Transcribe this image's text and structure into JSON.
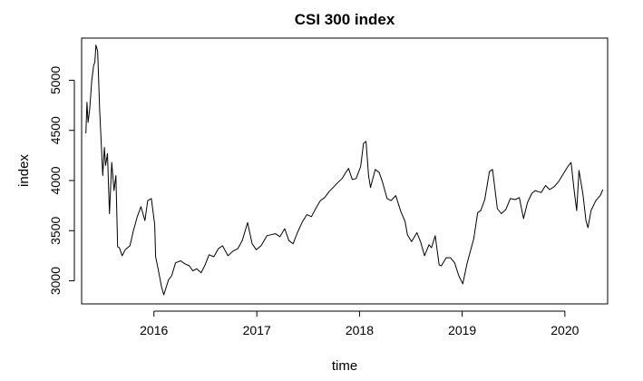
{
  "chart_data": {
    "type": "line",
    "title": "CSI 300 index",
    "xlabel": "time",
    "ylabel": "index",
    "x_ticks": [
      "2016",
      "2017",
      "2018",
      "2019",
      "2020"
    ],
    "y_ticks": [
      "3000",
      "3500",
      "4000",
      "4500",
      "5000"
    ],
    "xlim": [
      "2015-04-19",
      "2020-06-01"
    ],
    "ylim": [
      2770,
      5420
    ],
    "grid": false,
    "legend": "none",
    "line_color": "#000000",
    "series": [
      {
        "x": [
          "2015-05-04",
          "2015-05-08",
          "2015-05-12",
          "2015-05-18",
          "2015-05-25",
          "2015-06-01",
          "2015-06-05",
          "2015-06-09",
          "2015-06-15",
          "2015-06-22",
          "2015-06-29",
          "2015-07-03",
          "2015-07-09",
          "2015-07-13",
          "2015-07-20",
          "2015-07-27",
          "2015-08-04",
          "2015-08-12",
          "2015-08-19",
          "2015-08-25",
          "2015-08-31",
          "2015-09-10",
          "2015-09-21",
          "2015-10-08",
          "2015-10-20",
          "2015-11-03",
          "2015-11-16",
          "2015-11-30",
          "2015-12-10",
          "2015-12-23",
          "2016-01-04",
          "2016-01-07",
          "2016-01-15",
          "2016-01-28",
          "2016-02-05",
          "2016-02-22",
          "2016-03-04",
          "2016-03-18",
          "2016-04-05",
          "2016-04-20",
          "2016-05-06",
          "2016-05-18",
          "2016-06-01",
          "2016-06-17",
          "2016-07-01",
          "2016-07-15",
          "2016-08-01",
          "2016-08-17",
          "2016-09-01",
          "2016-09-20",
          "2016-10-10",
          "2016-10-25",
          "2016-11-10",
          "2016-11-29",
          "2016-12-15",
          "2016-12-30",
          "2017-01-16",
          "2017-02-06",
          "2017-02-21",
          "2017-03-08",
          "2017-03-24",
          "2017-04-10",
          "2017-04-25",
          "2017-05-10",
          "2017-05-25",
          "2017-06-12",
          "2017-06-28",
          "2017-07-14",
          "2017-07-31",
          "2017-08-15",
          "2017-08-30",
          "2017-09-15",
          "2017-09-29",
          "2017-10-16",
          "2017-10-31",
          "2017-11-13",
          "2017-11-23",
          "2017-12-06",
          "2017-12-20",
          "2018-01-05",
          "2018-01-15",
          "2018-01-24",
          "2018-02-02",
          "2018-02-09",
          "2018-02-26",
          "2018-03-12",
          "2018-03-23",
          "2018-04-09",
          "2018-04-23",
          "2018-05-10",
          "2018-05-28",
          "2018-06-12",
          "2018-06-20",
          "2018-07-05",
          "2018-07-24",
          "2018-08-06",
          "2018-08-20",
          "2018-09-05",
          "2018-09-14",
          "2018-09-27",
          "2018-10-11",
          "2018-10-19",
          "2018-11-05",
          "2018-11-20",
          "2018-12-05",
          "2018-12-20",
          "2019-01-03",
          "2019-01-18",
          "2019-02-11",
          "2019-02-25",
          "2019-03-08",
          "2019-03-22",
          "2019-04-08",
          "2019-04-19",
          "2019-05-06",
          "2019-05-20",
          "2019-06-05",
          "2019-06-21",
          "2019-07-08",
          "2019-07-23",
          "2019-08-07",
          "2019-08-21",
          "2019-09-05",
          "2019-09-17",
          "2019-10-09",
          "2019-10-24",
          "2019-11-08",
          "2019-11-25",
          "2019-12-10",
          "2019-12-25",
          "2020-01-14",
          "2020-01-23",
          "2020-02-03",
          "2020-02-12",
          "2020-02-20",
          "2020-03-05",
          "2020-03-16",
          "2020-03-23",
          "2020-04-03",
          "2020-04-20",
          "2020-05-06",
          "2020-05-15"
        ],
        "y": [
          4470,
          4780,
          4580,
          4720,
          5000,
          5150,
          5180,
          5350,
          5290,
          4700,
          4300,
          4050,
          4330,
          4150,
          4270,
          3670,
          4180,
          3900,
          4050,
          3340,
          3330,
          3250,
          3310,
          3350,
          3500,
          3640,
          3740,
          3600,
          3800,
          3820,
          3560,
          3240,
          3130,
          2940,
          2860,
          3010,
          3050,
          3180,
          3200,
          3170,
          3150,
          3100,
          3120,
          3080,
          3160,
          3260,
          3240,
          3320,
          3350,
          3250,
          3300,
          3320,
          3400,
          3580,
          3370,
          3310,
          3350,
          3450,
          3460,
          3470,
          3440,
          3520,
          3400,
          3370,
          3480,
          3590,
          3660,
          3640,
          3730,
          3800,
          3830,
          3890,
          3930,
          3980,
          4020,
          4080,
          4120,
          4010,
          4020,
          4140,
          4370,
          4390,
          4050,
          3930,
          4110,
          4080,
          3990,
          3820,
          3800,
          3850,
          3690,
          3590,
          3460,
          3390,
          3480,
          3390,
          3250,
          3360,
          3330,
          3450,
          3160,
          3150,
          3230,
          3230,
          3180,
          3050,
          2970,
          3170,
          3420,
          3680,
          3700,
          3810,
          4090,
          4110,
          3720,
          3670,
          3710,
          3820,
          3810,
          3830,
          3620,
          3780,
          3870,
          3900,
          3880,
          3950,
          3910,
          3940,
          3990,
          4060,
          4150,
          4180,
          3900,
          3700,
          4100,
          3870,
          3600,
          3530,
          3700,
          3800,
          3850,
          3910
        ]
      }
    ]
  }
}
